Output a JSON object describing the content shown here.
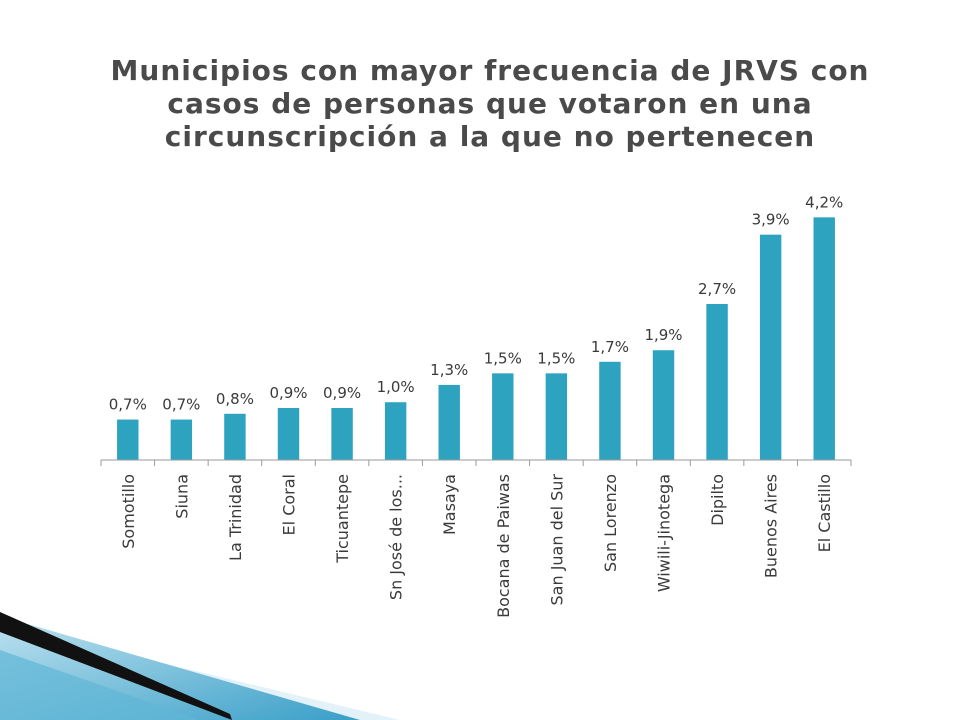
{
  "title_lines": [
    "Municipios con mayor frecuencia de JRVS con",
    "casos de personas que votaron en una",
    "circunscripción a la que no pertenecen"
  ],
  "colors": {
    "bar": "#2ea3c0",
    "axis": "#9a9a9a",
    "text": "#3a3a3a",
    "title": "#4a4a4a",
    "accent_dark": "#111111",
    "accent_blue": "#3a9fc8"
  },
  "chart_data": {
    "type": "bar",
    "categories": [
      "Somotillo",
      "Siuna",
      "La Trinidad",
      "El Coral",
      "Ticuantepe",
      "Sn José de los...",
      "Masaya",
      "Bocana de Paiwas",
      "San Juan del Sur",
      "San Lorenzo",
      "Wiwili-Jinotega",
      "Dipilto",
      "Buenos Aires",
      "El Castillo"
    ],
    "values": [
      0.7,
      0.7,
      0.8,
      0.9,
      0.9,
      1.0,
      1.3,
      1.5,
      1.5,
      1.7,
      1.9,
      2.7,
      3.9,
      4.2
    ],
    "data_labels": [
      "0,7%",
      "0,7%",
      "0,8%",
      "0,9%",
      "0,9%",
      "1,0%",
      "1,3%",
      "1,5%",
      "1,5%",
      "1,7%",
      "1,9%",
      "2,7%",
      "3,9%",
      "4,2%"
    ],
    "ylim": [
      0,
      4.5
    ],
    "grid": false,
    "legend": "none",
    "xlabel": "",
    "ylabel": ""
  }
}
